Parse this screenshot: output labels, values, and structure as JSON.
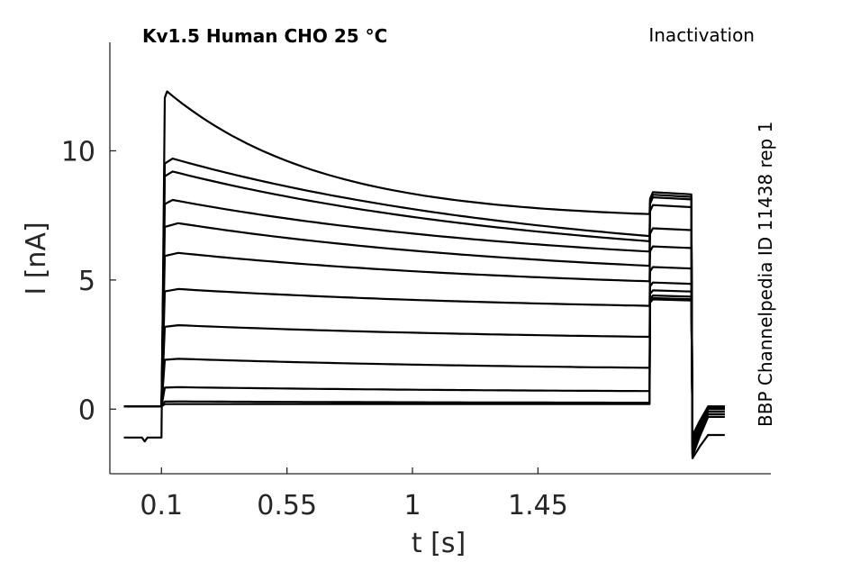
{
  "chart_data": {
    "type": "line",
    "title": "Kv1.5  Human  CHO  25 °C",
    "protocol": "Inactivation",
    "source_note": "BBP Channelpedia ID 11438 rep 1",
    "xlabel": "t [s]",
    "ylabel": "I [nA]",
    "xlim": [
      -0.085,
      2.285
    ],
    "ylim": [
      -2.5,
      14.2
    ],
    "xticks": [
      0.1,
      0.55,
      1,
      1.45
    ],
    "xtick_labels": [
      "0.1",
      "0.55",
      "1",
      "1.45"
    ],
    "yticks": [
      0,
      5,
      10
    ],
    "ytick_labels": [
      "0",
      "5",
      "10"
    ],
    "grid": false,
    "time_points": {
      "pre_end": 0.1,
      "step_end": 1.85,
      "test_end": 2.0,
      "trace_end": 2.12
    },
    "series": [
      {
        "pre": -1.1,
        "peak": 12.3,
        "end": 7.55,
        "test": 8.4,
        "tail": -1.0
      },
      {
        "pre": 0.1,
        "peak": 9.7,
        "end": 6.7,
        "test": 8.3,
        "tail": -0.3
      },
      {
        "pre": 0.1,
        "peak": 9.2,
        "end": 6.5,
        "test": 8.2,
        "tail": -0.2
      },
      {
        "pre": 0.1,
        "peak": 8.1,
        "end": 6.1,
        "test": 7.9,
        "tail": -0.1
      },
      {
        "pre": 0.1,
        "peak": 7.2,
        "end": 5.55,
        "test": 7.0,
        "tail": 0.0
      },
      {
        "pre": 0.1,
        "peak": 6.05,
        "end": 4.95,
        "test": 6.3,
        "tail": 0.0
      },
      {
        "pre": 0.1,
        "peak": 4.65,
        "end": 4.0,
        "test": 5.5,
        "tail": 0.05
      },
      {
        "pre": 0.1,
        "peak": 3.25,
        "end": 2.8,
        "test": 4.9,
        "tail": 0.05
      },
      {
        "pre": 0.1,
        "peak": 1.95,
        "end": 1.6,
        "test": 4.6,
        "tail": 0.05
      },
      {
        "pre": 0.1,
        "peak": 0.85,
        "end": 0.7,
        "test": 4.4,
        "tail": 0.1
      },
      {
        "pre": 0.1,
        "peak": 0.3,
        "end": 0.25,
        "test": 4.3,
        "tail": 0.1
      },
      {
        "pre": 0.1,
        "peak": 0.2,
        "end": 0.2,
        "test": 4.25,
        "tail": 0.1
      }
    ]
  }
}
